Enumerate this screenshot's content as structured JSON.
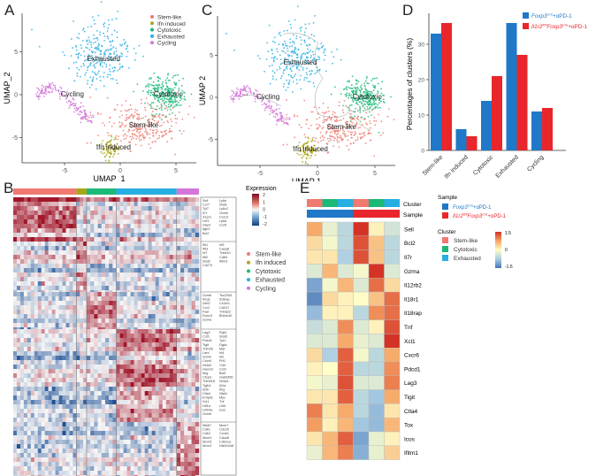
{
  "panels": {
    "a": "A",
    "b": "B",
    "c": "C",
    "d": "D",
    "e": "E"
  },
  "colors": {
    "stem_like": "#f07a70",
    "ifn_induced": "#a9a61a",
    "cytotoxic": "#1bb877",
    "exhausted": "#27aee3",
    "cycling": "#d575d9",
    "foxp3": "#1f78c8",
    "il1r2": "#e8262b"
  },
  "chart_data": [
    {
      "id": "A",
      "type": "scatter",
      "xlabel": "UMAP_1",
      "ylabel": "UMAP_2",
      "xticks": [
        -5,
        0,
        5
      ],
      "yticks": [
        -5,
        0,
        5
      ],
      "xlim": [
        -8.5,
        6.5
      ],
      "ylim": [
        -8,
        8.5
      ],
      "legend": [
        "Stem-like",
        "Ifn induced",
        "Cytotoxic",
        "Exhausted",
        "Cycling"
      ],
      "legend_position": "top-right",
      "clusters": [
        {
          "name": "Exhausted",
          "label": "Exhausted",
          "center": [
            -1.8,
            4.8
          ],
          "spread": [
            1.5,
            1.9
          ]
        },
        {
          "name": "Cycling",
          "label": "Cycling",
          "center": [
            -4.8,
            0
          ],
          "spread": [
            1.6,
            0.8
          ]
        },
        {
          "name": "Cytotoxic",
          "label": "Cytotoxic",
          "center": [
            4,
            0
          ],
          "spread": [
            0.9,
            1.1
          ]
        },
        {
          "name": "Stem-like",
          "label": "Stem-like",
          "center": [
            1.8,
            -3.6
          ],
          "spread": [
            1.8,
            1.2
          ]
        },
        {
          "name": "Ifn induced",
          "label": "Ifn induced",
          "center": [
            -0.9,
            -6.2
          ],
          "spread": [
            0.5,
            0.6
          ]
        }
      ]
    },
    {
      "id": "C",
      "type": "scatter",
      "xlabel": "UMAP 1",
      "ylabel": "UMAP 2",
      "xticks": [
        -5,
        0,
        5
      ],
      "yticks": [
        -5,
        0,
        5
      ],
      "xlim": [
        -8.5,
        6.5
      ],
      "ylim": [
        -8,
        8.5
      ],
      "labels": [
        "Exhausted",
        "Cycling",
        "Cytotoxic",
        "Stem-like",
        "Ifn induced"
      ]
    },
    {
      "id": "D",
      "type": "bar",
      "ylabel": "Percentages of clusters (%)",
      "ylim": [
        0,
        38
      ],
      "yticks": [
        0,
        10,
        20,
        30
      ],
      "categories": [
        "Stem-like",
        "Ifn induced",
        "Cytotoxic",
        "Exhausted",
        "Cycling"
      ],
      "series": [
        {
          "name": "Foxp3",
          "sup": "Cre",
          "suffix": "+αPD-1",
          "values": [
            33,
            6,
            14,
            36,
            11
          ]
        },
        {
          "name": "Il1r2",
          "sup": "fl/fl",
          "mid": "Foxp3",
          "sup2": "Cre",
          "suffix": "+αPD-1",
          "values": [
            36,
            4,
            21,
            27,
            12
          ]
        }
      ],
      "legend_position": "top-right"
    },
    {
      "id": "B",
      "type": "heatmap",
      "legend_title": "Expression",
      "scale_ticks": [
        "2",
        "1",
        "0",
        "-1",
        "-2"
      ],
      "clusters": [
        "Stem-like",
        "Ifn induced",
        "Cytotoxic",
        "Exhausted",
        "Cycling"
      ],
      "cluster_fractions": [
        0.34,
        0.055,
        0.16,
        0.325,
        0.12
      ],
      "gene_groups": [
        {
          "cluster": "Stem-like",
          "col1": "Sell\nCcr7\nTcf7\nIl7r\nS1pr1\nLef1\nGbp2\nItgb1\nBcl2",
          "col2": "Ly6e\nStat1\nLy6c2\nGzmk\nCxcr3\nLy6a\nCcr5"
        },
        {
          "cluster": "Ifn induced",
          "col1": "Ifit1\nIfit3\nIrf7\nIfit2\nStat2\nCd274",
          "col2": "Irf5\nCasp8\nTnfsf10\nCd69\nIfitm3"
        },
        {
          "cluster": "Cytotoxic",
          "col1": "Gzmb\nKlrg1\nZeb2\nCcr2\nFasl\nRunx3\nGzma",
          "col2": "Tsc22d3\nIl18rap\nCx3cr1\nCd247\nTnfaip3\nBhlhe40"
        },
        {
          "cluster": "Exhausted",
          "col1": "Lag3\nCcl5\nPdcd1\nTigit\nTnfrsf9\nLars\nGzmk\nCxcr6\nNr4a2\nHavcr2\nIfng\nCtsp3\nTnfrsf18\nTgfb1\nIl2rb\nCtla4\nEntpd1\nXcl1\nHif1a\nLilrb4a\nGzmb",
          "col2": "Pgk1\nStat3\nTpi1\nDgkz\nMaf\nIrf4\nId2\nPrf1\nCd4\nCcl3\nBatf\nGadd45b\nNr4a3\nIl2ra\nIfng\nNfat1\nMyc\nTnf\nLilrb\nIcos"
        },
        {
          "cluster": "Cycling",
          "col1": "Mki67\nCdk1\nCdk2\nMcm3\nMcm5\nMcm2",
          "col2": "Mcm7\nCdc20\nCcnb1\nCdca5\nCdkn1a\nHist1h2af"
        }
      ]
    },
    {
      "id": "E",
      "type": "heatmap",
      "row_title_cluster": "Cluster",
      "row_title_sample": "Sample",
      "legend_sample_title": "Sample",
      "legend_cluster_title": "Cluster",
      "scale": {
        "min": -1.5,
        "max": 1.5,
        "ticks": [
          "1.5",
          "0",
          "-1.5"
        ]
      },
      "columns": [
        {
          "sample": "Foxp3",
          "cluster": "Stem-like"
        },
        {
          "sample": "Foxp3",
          "cluster": "Cytotoxic"
        },
        {
          "sample": "Foxp3",
          "cluster": "Exhausted"
        },
        {
          "sample": "Il1r2",
          "cluster": "Stem-like"
        },
        {
          "sample": "Il1r2",
          "cluster": "Cytotoxic"
        },
        {
          "sample": "Il1r2",
          "cluster": "Exhausted"
        }
      ],
      "cluster_legend": [
        "Stem-like",
        "Cytotoxic",
        "Exhausted"
      ],
      "rows": [
        "Sell",
        "Bcl2",
        "Il7r",
        "Gzma",
        "Il12rb2",
        "Il18r1",
        "Il18rap",
        "Tnf",
        "Xcl1",
        "Cxcr6",
        "Pdcd1",
        "Lag3",
        "Tigit",
        "Ctla4",
        "Tox",
        "Icos",
        "Ifitm1"
      ],
      "values": [
        [
          0.7,
          -0.2,
          -0.6,
          1.5,
          0.1,
          -0.4
        ],
        [
          0.3,
          -0.1,
          -0.6,
          1.3,
          0.5,
          -0.6
        ],
        [
          0.2,
          0.2,
          -0.7,
          1.3,
          0.5,
          -0.6
        ],
        [
          -0.3,
          0.6,
          -0.3,
          -0.1,
          1.6,
          -0.3
        ],
        [
          -1.1,
          -0.1,
          0.6,
          -0.3,
          1.1,
          0.3
        ],
        [
          -1.3,
          0.3,
          0.1,
          0.0,
          0.5,
          1.1
        ],
        [
          -0.9,
          0.1,
          0.1,
          -0.6,
          0.9,
          1.1
        ],
        [
          -0.5,
          -0.3,
          0.9,
          -0.3,
          0.1,
          1.3
        ],
        [
          -0.3,
          -0.3,
          0.7,
          -0.2,
          -0.3,
          1.5
        ],
        [
          0.3,
          -0.7,
          1.2,
          -0.1,
          -0.6,
          0.7
        ],
        [
          0.1,
          0.0,
          1.2,
          -0.6,
          -0.6,
          0.9
        ],
        [
          -0.1,
          -0.2,
          1.3,
          -0.3,
          -0.3,
          1.0
        ],
        [
          0.2,
          0.2,
          1.2,
          -0.6,
          -0.8,
          0.7
        ],
        [
          1.0,
          0.2,
          0.7,
          -0.6,
          -0.9,
          0.2
        ],
        [
          0.8,
          0.1,
          0.6,
          -0.8,
          -0.9,
          0.6
        ],
        [
          0.2,
          0.6,
          1.2,
          -1.1,
          -0.2,
          0.1
        ],
        [
          -0.2,
          0.6,
          1.0,
          -1.0,
          -0.2,
          0.4
        ]
      ]
    }
  ]
}
